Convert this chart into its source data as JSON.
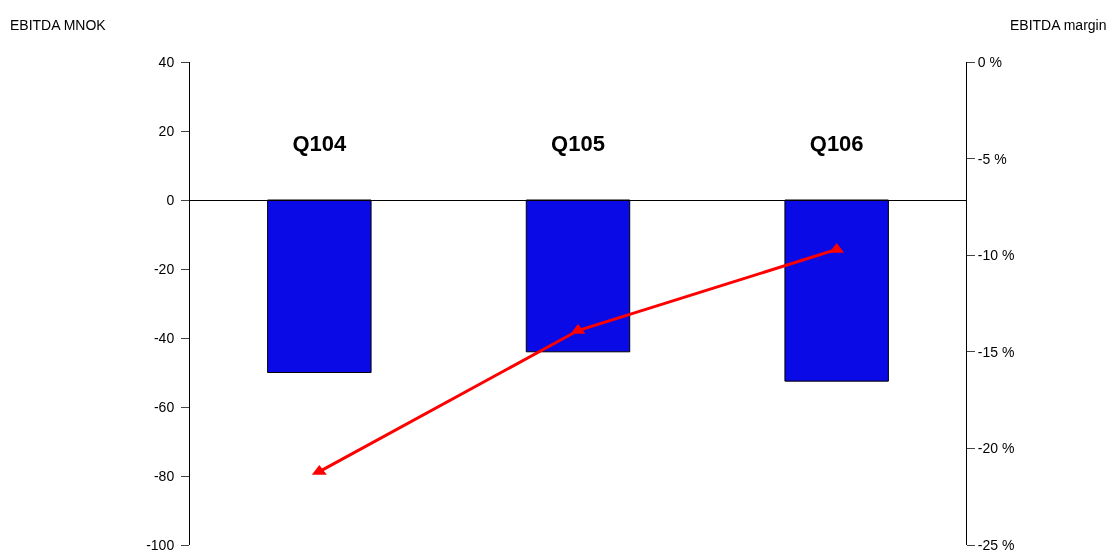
{
  "chart_data": {
    "type": "bar",
    "ylabel": "EBITDA MNOK",
    "y2label": "EBITDA margin",
    "categories": [
      "Q104",
      "Q105",
      "Q106"
    ],
    "series": [
      {
        "color": "#0a0ae6",
        "values": [
          -50,
          -44,
          -52.5
        ]
      },
      {
        "type": "line",
        "axis": "y2",
        "color": "#ff0000",
        "values": [
          -21.2,
          -13.9,
          -9.7
        ],
        "marker": "triangle",
        "line_style": "solid"
      }
    ],
    "ylim": [
      -100,
      40
    ],
    "yticks": [
      -100,
      -80,
      -60,
      -40,
      -20,
      0,
      20,
      40
    ],
    "y2lim": [
      -25,
      0
    ],
    "y2ticks": [
      {
        "value": -25,
        "label": "-25 %"
      },
      {
        "value": -20,
        "label": "-20 %"
      },
      {
        "value": -15,
        "label": "-15 %"
      },
      {
        "value": -10,
        "label": "-10 %"
      },
      {
        "value": -5,
        "label": "-5 %"
      },
      {
        "value": 0,
        "label": "0 %"
      }
    ],
    "grid": false,
    "legend": false
  }
}
